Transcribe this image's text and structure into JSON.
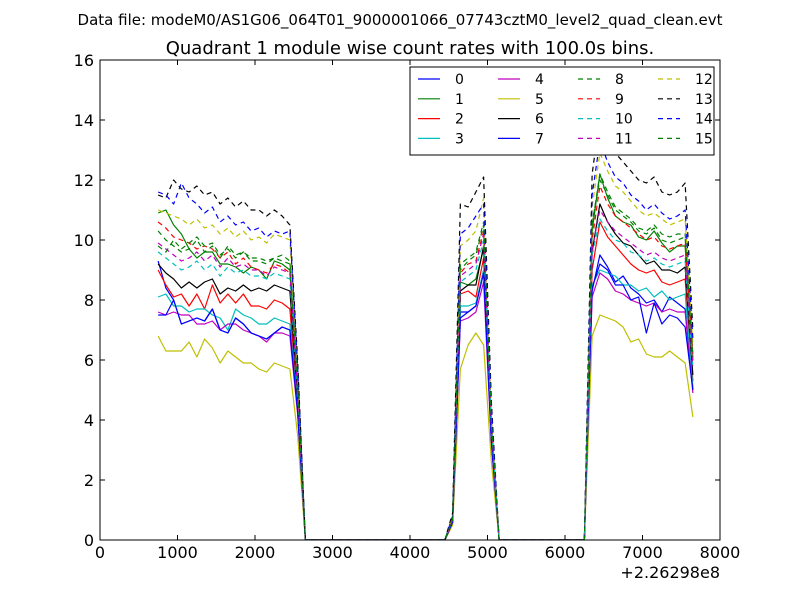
{
  "figure": {
    "suptitle": "Data file: modeM0/AS1G06_064T01_9000001066_07743cztM0_level2_quad_clean.evt"
  },
  "chart_data": {
    "type": "line",
    "title": "Quadrant 1 module wise count rates with 100.0s bins.",
    "xlabel": "",
    "ylabel": "",
    "x_offset_label": "+2.26298e8",
    "xlim": [
      0,
      8000
    ],
    "ylim": [
      0,
      16
    ],
    "xticks": [
      0,
      1000,
      2000,
      3000,
      4000,
      5000,
      6000,
      7000,
      8000
    ],
    "yticks": [
      0,
      2,
      4,
      6,
      8,
      10,
      12,
      14,
      16
    ],
    "x": [
      750,
      850,
      950,
      1050,
      1150,
      1250,
      1350,
      1450,
      1550,
      1650,
      1750,
      1850,
      1950,
      2050,
      2150,
      2250,
      2350,
      2450,
      2550,
      2650,
      2750,
      2850,
      2950,
      3050,
      3150,
      3250,
      3350,
      3450,
      3550,
      3650,
      3750,
      3850,
      3950,
      4050,
      4150,
      4250,
      4350,
      4450,
      4550,
      4650,
      4750,
      4850,
      4950,
      5050,
      5150,
      5250,
      5350,
      5450,
      5550,
      5650,
      5750,
      5850,
      5950,
      6050,
      6150,
      6250,
      6350,
      6450,
      6550,
      6650,
      6750,
      6850,
      6950,
      7050,
      7150,
      7250,
      7350,
      7450,
      7550,
      7650
    ],
    "legend": {
      "location": "upper right",
      "columns": 4
    },
    "series": [
      {
        "name": "0",
        "color": "#0000ff",
        "dash": "solid",
        "values": [
          9.3,
          8.4,
          8.0,
          7.2,
          7.3,
          7.4,
          7.3,
          7.7,
          7.0,
          6.9,
          7.4,
          7.2,
          6.9,
          6.8,
          6.7,
          6.9,
          7.1,
          7.0,
          4.3,
          0,
          0,
          0,
          0,
          0,
          0,
          0,
          0,
          0,
          0,
          0,
          0,
          0,
          0,
          0,
          0,
          0,
          0,
          0,
          0.6,
          7.6,
          7.6,
          7.8,
          9.0,
          3.3,
          0,
          0,
          0,
          0,
          0,
          0,
          0,
          0,
          0,
          0,
          0,
          0,
          8.3,
          9.5,
          9.1,
          8.6,
          8.8,
          8.4,
          8.2,
          7.9,
          8.0,
          7.6,
          8.1,
          7.9,
          7.7,
          5.0
        ]
      },
      {
        "name": "1",
        "color": "#008000",
        "dash": "solid",
        "values": [
          10.9,
          11.0,
          10.5,
          10.2,
          9.7,
          9.4,
          9.6,
          9.6,
          9.2,
          9.2,
          9.1,
          8.9,
          9.1,
          9.0,
          8.7,
          9.3,
          9.2,
          9.0,
          4.9,
          0,
          0,
          0,
          0,
          0,
          0,
          0,
          0,
          0,
          0,
          0,
          0,
          0,
          0,
          0,
          0,
          0,
          0,
          0,
          0.7,
          8.6,
          8.5,
          8.7,
          9.7,
          3.8,
          0,
          0,
          0,
          0,
          0,
          0,
          0,
          0,
          0,
          0,
          0,
          0,
          10.3,
          12.2,
          11.4,
          10.8,
          10.6,
          10.5,
          10.1,
          10.0,
          10.3,
          9.9,
          9.6,
          9.8,
          9.8,
          6.0
        ]
      },
      {
        "name": "2",
        "color": "#ff0000",
        "dash": "solid",
        "values": [
          9.0,
          8.5,
          8.1,
          8.2,
          7.8,
          8.2,
          7.7,
          8.5,
          7.9,
          8.2,
          7.9,
          8.2,
          7.8,
          7.8,
          7.7,
          8.0,
          7.9,
          7.7,
          4.6,
          0,
          0,
          0,
          0,
          0,
          0,
          0,
          0,
          0,
          0,
          0,
          0,
          0,
          0,
          0,
          0,
          0,
          0,
          0,
          0.6,
          8.2,
          8.3,
          8.1,
          9.4,
          3.5,
          0,
          0,
          0,
          0,
          0,
          0,
          0,
          0,
          0,
          0,
          0,
          0,
          9.0,
          10.6,
          10.1,
          9.8,
          9.5,
          9.2,
          9.0,
          8.9,
          9.0,
          8.6,
          8.5,
          8.6,
          8.7,
          5.3
        ]
      },
      {
        "name": "3",
        "color": "#00bfbf",
        "dash": "solid",
        "values": [
          8.1,
          8.2,
          7.8,
          7.8,
          7.6,
          7.7,
          7.7,
          7.5,
          7.4,
          7.0,
          7.7,
          7.5,
          7.4,
          7.2,
          7.2,
          7.4,
          7.3,
          7.2,
          4.4,
          0,
          0,
          0,
          0,
          0,
          0,
          0,
          0,
          0,
          0,
          0,
          0,
          0,
          0,
          0,
          0,
          0,
          0,
          0,
          0.6,
          7.8,
          7.8,
          7.9,
          9.0,
          3.4,
          0,
          0,
          0,
          0,
          0,
          0,
          0,
          0,
          0,
          0,
          0,
          0,
          8.5,
          9.0,
          8.9,
          8.8,
          8.5,
          8.5,
          8.3,
          8.4,
          8.1,
          8.3,
          8.0,
          8.1,
          8.2,
          5.1
        ]
      },
      {
        "name": "4",
        "color": "#bf00bf",
        "dash": "solid",
        "values": [
          7.6,
          7.5,
          7.6,
          7.5,
          7.5,
          7.2,
          7.2,
          7.3,
          7.0,
          7.2,
          7.2,
          7.0,
          6.9,
          6.8,
          6.6,
          6.9,
          6.9,
          6.8,
          4.2,
          0,
          0,
          0,
          0,
          0,
          0,
          0,
          0,
          0,
          0,
          0,
          0,
          0,
          0,
          0,
          0,
          0,
          0,
          0,
          0.6,
          7.3,
          7.4,
          7.6,
          8.6,
          3.2,
          0,
          0,
          0,
          0,
          0,
          0,
          0,
          0,
          0,
          0,
          0,
          0,
          8.1,
          8.9,
          8.7,
          8.3,
          8.2,
          8.0,
          7.9,
          7.8,
          7.9,
          7.6,
          7.7,
          7.6,
          7.6,
          4.9
        ]
      },
      {
        "name": "5",
        "color": "#bfbf00",
        "dash": "solid",
        "values": [
          6.8,
          6.3,
          6.3,
          6.3,
          6.6,
          6.1,
          6.7,
          6.4,
          5.9,
          6.3,
          6.1,
          5.9,
          5.9,
          5.7,
          5.6,
          5.9,
          5.8,
          5.7,
          3.5,
          0,
          0,
          0,
          0,
          0,
          0,
          0,
          0,
          0,
          0,
          0,
          0,
          0,
          0,
          0,
          0,
          0,
          0,
          0,
          0.5,
          5.7,
          6.5,
          6.9,
          6.5,
          2.6,
          0,
          0,
          0,
          0,
          0,
          0,
          0,
          0,
          0,
          0,
          0,
          0,
          6.8,
          7.5,
          7.4,
          7.3,
          7.1,
          6.6,
          6.7,
          6.2,
          6.1,
          6.1,
          6.3,
          6.1,
          5.9,
          4.1
        ]
      },
      {
        "name": "6",
        "color": "#000000",
        "dash": "solid",
        "values": [
          9.2,
          8.9,
          8.7,
          8.4,
          8.6,
          8.4,
          8.6,
          8.7,
          8.2,
          8.4,
          8.3,
          8.5,
          8.3,
          8.4,
          8.3,
          8.5,
          8.4,
          8.3,
          4.8,
          0,
          0,
          0,
          0,
          0,
          0,
          0,
          0,
          0,
          0,
          0,
          0,
          0,
          0,
          0,
          0,
          0,
          0,
          0,
          0.6,
          8.3,
          8.5,
          8.5,
          9.8,
          3.6,
          0,
          0,
          0,
          0,
          0,
          0,
          0,
          0,
          0,
          0,
          0,
          0,
          9.6,
          11.2,
          10.6,
          10.2,
          9.9,
          9.8,
          9.5,
          9.2,
          9.3,
          9.0,
          9.0,
          8.9,
          9.1,
          5.5
        ]
      },
      {
        "name": "7",
        "color": "#0000ff",
        "dash": "solid",
        "values": [
          7.5,
          7.5,
          8.0,
          7.2,
          7.3,
          7.4,
          7.3,
          7.7,
          7.0,
          6.9,
          7.4,
          7.2,
          6.9,
          6.8,
          6.7,
          6.9,
          7.1,
          7.0,
          4.3,
          0,
          0,
          0,
          0,
          0,
          0,
          0,
          0,
          0,
          0,
          0,
          0,
          0,
          0,
          0,
          0,
          0,
          0,
          0,
          0.6,
          7.4,
          7.6,
          7.8,
          8.9,
          3.3,
          0,
          0,
          0,
          0,
          0,
          0,
          0,
          0,
          0,
          0,
          0,
          0,
          8.4,
          9.2,
          9.0,
          8.5,
          8.5,
          8.0,
          8.1,
          6.9,
          7.9,
          7.2,
          7.5,
          7.4,
          7.1,
          5.0
        ]
      },
      {
        "name": "8",
        "color": "#008000",
        "dash": "dashed",
        "values": [
          10.3,
          10.0,
          9.8,
          9.6,
          9.7,
          10.0,
          9.6,
          9.8,
          9.4,
          9.8,
          9.5,
          9.6,
          9.4,
          9.4,
          9.3,
          9.4,
          9.5,
          9.3,
          5.3,
          0,
          0,
          0,
          0,
          0,
          0,
          0,
          0,
          0,
          0,
          0,
          0,
          0,
          0,
          0,
          0,
          0,
          0,
          0,
          0.7,
          9.0,
          9.3,
          9.5,
          10.5,
          4.0,
          0,
          0,
          0,
          0,
          0,
          0,
          0,
          0,
          0,
          0,
          0,
          0,
          10.5,
          12.2,
          11.6,
          11.1,
          10.9,
          10.7,
          10.4,
          10.3,
          10.5,
          10.2,
          10.1,
          10.2,
          10.2,
          6.2
        ]
      },
      {
        "name": "9",
        "color": "#ff0000",
        "dash": "dashed",
        "values": [
          10.6,
          10.4,
          10.1,
          10.0,
          9.9,
          9.7,
          9.8,
          9.7,
          9.4,
          9.6,
          9.2,
          9.4,
          9.1,
          9.0,
          8.9,
          9.2,
          9.1,
          8.9,
          5.0,
          0,
          0,
          0,
          0,
          0,
          0,
          0,
          0,
          0,
          0,
          0,
          0,
          0,
          0,
          0,
          0,
          0,
          0,
          0,
          0.7,
          8.9,
          9.2,
          9.3,
          10.3,
          3.9,
          0,
          0,
          0,
          0,
          0,
          0,
          0,
          0,
          0,
          0,
          0,
          0,
          10.0,
          11.8,
          11.2,
          10.8,
          10.6,
          10.4,
          10.2,
          10.0,
          10.1,
          9.8,
          9.7,
          9.8,
          9.9,
          6.0
        ]
      },
      {
        "name": "10",
        "color": "#00bfbf",
        "dash": "dashed",
        "values": [
          9.6,
          9.4,
          9.2,
          9.0,
          9.1,
          9.3,
          9.0,
          9.2,
          8.8,
          9.1,
          8.9,
          9.0,
          8.8,
          8.8,
          8.7,
          8.9,
          8.8,
          8.7,
          4.9,
          0,
          0,
          0,
          0,
          0,
          0,
          0,
          0,
          0,
          0,
          0,
          0,
          0,
          0,
          0,
          0,
          0,
          0,
          0,
          0.7,
          8.6,
          8.8,
          9.0,
          10.0,
          3.8,
          0,
          0,
          0,
          0,
          0,
          0,
          0,
          0,
          0,
          0,
          0,
          0,
          9.5,
          10.7,
          10.3,
          10.0,
          9.9,
          9.6,
          9.5,
          9.3,
          9.4,
          9.2,
          9.1,
          9.2,
          9.3,
          5.7
        ]
      },
      {
        "name": "11",
        "color": "#bf00bf",
        "dash": "dashed",
        "values": [
          9.9,
          9.7,
          9.5,
          9.3,
          9.4,
          9.6,
          9.3,
          9.5,
          9.1,
          9.4,
          9.1,
          9.2,
          9.0,
          9.0,
          8.8,
          9.1,
          9.0,
          8.9,
          5.0,
          0,
          0,
          0,
          0,
          0,
          0,
          0,
          0,
          0,
          0,
          0,
          0,
          0,
          0,
          0,
          0,
          0,
          0,
          0,
          0.7,
          8.8,
          9.0,
          9.2,
          10.2,
          3.8,
          0,
          0,
          0,
          0,
          0,
          0,
          0,
          0,
          0,
          0,
          0,
          0,
          9.7,
          11.0,
          10.6,
          10.3,
          10.1,
          9.9,
          9.7,
          9.5,
          9.6,
          9.4,
          9.3,
          9.4,
          9.5,
          5.8
        ]
      },
      {
        "name": "12",
        "color": "#bfbf00",
        "dash": "dashed",
        "values": [
          11.0,
          10.9,
          10.8,
          10.7,
          10.5,
          10.7,
          10.4,
          10.5,
          10.2,
          10.4,
          10.1,
          10.3,
          10.0,
          10.1,
          9.9,
          10.2,
          10.1,
          10.0,
          5.6,
          0,
          0,
          0,
          0,
          0,
          0,
          0,
          0,
          0,
          0,
          0,
          0,
          0,
          0,
          0,
          0,
          0,
          0,
          0,
          0.8,
          9.8,
          10.0,
          10.3,
          11.4,
          4.3,
          0,
          0,
          0,
          0,
          0,
          0,
          0,
          0,
          0,
          0,
          0,
          0,
          11.1,
          12.9,
          12.3,
          11.8,
          11.6,
          11.3,
          11.0,
          10.8,
          10.9,
          10.7,
          10.5,
          10.6,
          10.7,
          6.5
        ]
      },
      {
        "name": "13",
        "color": "#000000",
        "dash": "dashed",
        "values": [
          11.5,
          11.4,
          12.0,
          11.7,
          11.6,
          11.8,
          11.5,
          11.6,
          11.2,
          11.4,
          11.1,
          11.3,
          11.0,
          11.0,
          10.8,
          11.0,
          10.8,
          10.5,
          6.0,
          0,
          0,
          0,
          0,
          0,
          0,
          0,
          0,
          0,
          0,
          0,
          0,
          0,
          0,
          0,
          0,
          0,
          0,
          0,
          0.9,
          11.2,
          11.1,
          11.6,
          12.1,
          4.6,
          0,
          0,
          0,
          0,
          0,
          0,
          0,
          0,
          0,
          0,
          0,
          0,
          12.2,
          14.1,
          13.3,
          12.9,
          12.6,
          12.3,
          12.0,
          11.9,
          12.1,
          11.6,
          11.5,
          11.6,
          11.9,
          7.0
        ]
      },
      {
        "name": "14",
        "color": "#0000ff",
        "dash": "dashed",
        "values": [
          11.6,
          11.5,
          11.2,
          11.9,
          11.4,
          11.2,
          10.9,
          11.1,
          10.6,
          10.8,
          10.5,
          10.6,
          10.3,
          10.4,
          10.1,
          10.3,
          10.2,
          10.3,
          5.8,
          0,
          0,
          0,
          0,
          0,
          0,
          0,
          0,
          0,
          0,
          0,
          0,
          0,
          0,
          0,
          0,
          0,
          0,
          0,
          0.8,
          10.2,
          10.4,
          10.8,
          11.2,
          4.4,
          0,
          0,
          0,
          0,
          0,
          0,
          0,
          0,
          0,
          0,
          0,
          0,
          11.5,
          13.3,
          12.6,
          12.1,
          11.9,
          11.5,
          11.3,
          11.0,
          11.2,
          10.9,
          10.7,
          10.8,
          11.0,
          6.7
        ]
      },
      {
        "name": "15",
        "color": "#008000",
        "dash": "dashed",
        "values": [
          9.8,
          9.6,
          10.0,
          9.7,
          9.9,
          10.1,
          9.8,
          9.9,
          9.5,
          9.7,
          9.4,
          9.6,
          9.3,
          9.3,
          9.2,
          9.4,
          9.3,
          9.2,
          5.2,
          0,
          0,
          0,
          0,
          0,
          0,
          0,
          0,
          0,
          0,
          0,
          0,
          0,
          0,
          0,
          0,
          0,
          0,
          0,
          0.7,
          9.2,
          9.4,
          9.6,
          10.6,
          4.0,
          0,
          0,
          0,
          0,
          0,
          0,
          0,
          0,
          0,
          0,
          0,
          0,
          10.6,
          12.0,
          11.5,
          11.0,
          10.8,
          10.6,
          10.3,
          10.2,
          10.4,
          10.0,
          9.9,
          10.0,
          10.1,
          6.1
        ]
      }
    ]
  }
}
